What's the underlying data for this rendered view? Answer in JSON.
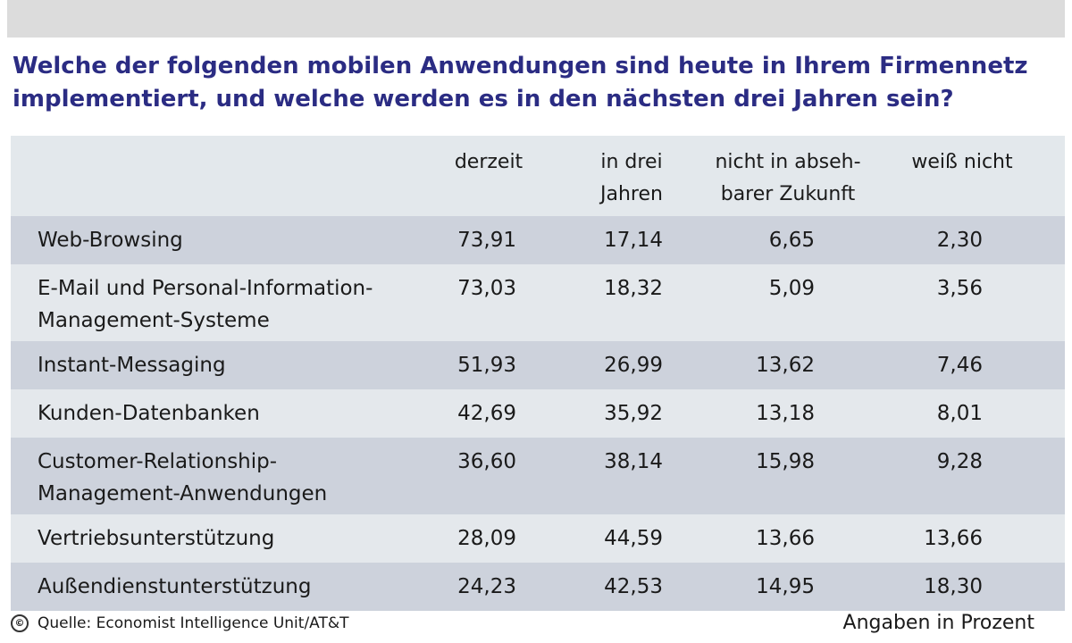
{
  "title_lines": [
    "Welche der folgenden mobilen Anwendungen sind heute in Ihrem Firmennetz",
    "implementiert, und welche werden es in den nächsten drei Jahren sein?"
  ],
  "columns": [
    [
      "derzeit"
    ],
    [
      "in drei",
      "Jahren"
    ],
    [
      "nicht in abseh-",
      "barer Zukunft"
    ],
    [
      "weiß nicht"
    ]
  ],
  "footer": {
    "copyright_symbol": "©",
    "source": "Quelle: Economist Intelligence Unit/AT&T",
    "unit": "Angaben in Prozent"
  },
  "chart_data": {
    "type": "table",
    "title": "Welche der folgenden mobilen Anwendungen sind heute in Ihrem Firmennetz implementiert, und welche werden es in den nächsten drei Jahren sein?",
    "columns": [
      "derzeit",
      "in drei Jahren",
      "nicht in absehbarer Zukunft",
      "weiß nicht"
    ],
    "rows": [
      {
        "label_lines": [
          "Web-Browsing"
        ],
        "values": [
          "73,91",
          "17,14",
          "6,65",
          "2,30"
        ]
      },
      {
        "label_lines": [
          "E-Mail und Personal-Information-",
          "Management-Systeme"
        ],
        "values": [
          "73,03",
          "18,32",
          "5,09",
          "3,56"
        ]
      },
      {
        "label_lines": [
          "Instant-Messaging"
        ],
        "values": [
          "51,93",
          "26,99",
          "13,62",
          "7,46"
        ]
      },
      {
        "label_lines": [
          "Kunden-Datenbanken"
        ],
        "values": [
          "42,69",
          "35,92",
          "13,18",
          "8,01"
        ]
      },
      {
        "label_lines": [
          "Customer-Relationship-",
          "Management-Anwendungen"
        ],
        "values": [
          "36,60",
          "38,14",
          "15,98",
          "9,28"
        ]
      },
      {
        "label_lines": [
          "Vertriebsunterstützung"
        ],
        "values": [
          "28,09",
          "44,59",
          "13,66",
          "13,66"
        ]
      },
      {
        "label_lines": [
          "Außendienstunterstützung"
        ],
        "values": [
          "24,23",
          "42,53",
          "14,95",
          "18,30"
        ]
      }
    ],
    "source": "Quelle: Economist Intelligence Unit/AT&T",
    "unit": "Angaben in Prozent"
  }
}
